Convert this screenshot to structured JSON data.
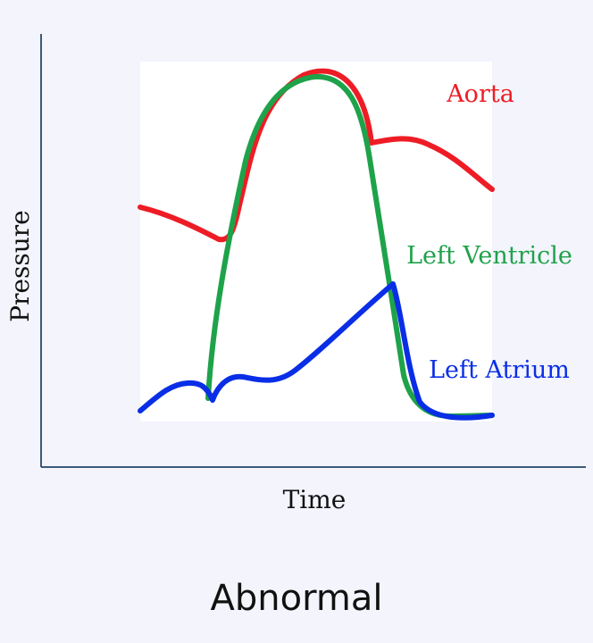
{
  "diagram": {
    "y_axis_title": "Pressure",
    "x_axis_title": "Time",
    "caption": "Abnormal",
    "series": [
      {
        "key": "aorta",
        "label": "Aorta",
        "color": "#ee1c25"
      },
      {
        "key": "left_ventricle",
        "label": "Left Ventricle",
        "color": "#1ea24a"
      },
      {
        "key": "left_atrium",
        "label": "Left Atrium",
        "color": "#0a2ee6"
      }
    ],
    "axis_color": "#3c5a78",
    "plot_background": "#ffffff"
  }
}
